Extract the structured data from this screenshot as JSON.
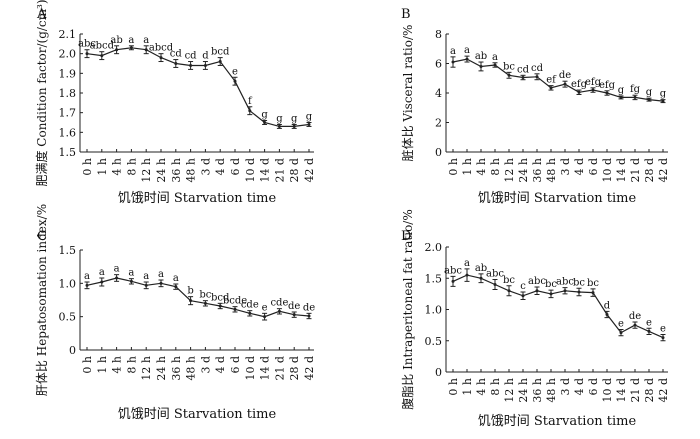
{
  "chart_data": [
    {
      "type": "line",
      "panel_label": "A",
      "ylabel": "肥满度 Condition factor/(g/cm³)",
      "xlabel": "饥饿时间 Starvation time",
      "categories": [
        "0 h",
        "1 h",
        "4 h",
        "8 h",
        "12 h",
        "24 h",
        "36 h",
        "48 h",
        "3 d",
        "4 d",
        "6 d",
        "10 d",
        "14 d",
        "21 d",
        "28 d",
        "42 d"
      ],
      "yticks": [
        "1.5",
        "1.6",
        "1.7",
        "1.8",
        "1.9",
        "2.0",
        "2.1"
      ],
      "ylim": [
        1.5,
        2.1
      ],
      "values": [
        2.0,
        1.99,
        2.02,
        2.03,
        2.02,
        1.98,
        1.95,
        1.94,
        1.94,
        1.96,
        1.86,
        1.71,
        1.65,
        1.63,
        1.63,
        1.64
      ],
      "errors": [
        0.02,
        0.02,
        0.02,
        0.01,
        0.02,
        0.02,
        0.02,
        0.02,
        0.02,
        0.02,
        0.02,
        0.02,
        0.01,
        0.01,
        0.01,
        0.01
      ],
      "letters": [
        "abc",
        "abcd",
        "ab",
        "a",
        "a",
        "abcd",
        "cd",
        "cd",
        "d",
        "bcd",
        "e",
        "f",
        "g",
        "g",
        "g",
        "g"
      ],
      "grid": false
    },
    {
      "type": "line",
      "panel_label": "B",
      "ylabel": "脏体比 Visceral ratio/%",
      "xlabel": "饥饿时间 Starvation time",
      "categories": [
        "0 h",
        "1 h",
        "4 h",
        "8 h",
        "12 h",
        "24 h",
        "36 h",
        "48 h",
        "3 d",
        "4 d",
        "6 d",
        "10 d",
        "14 d",
        "21 d",
        "28 d",
        "42 d"
      ],
      "yticks": [
        "0",
        "2",
        "4",
        "6",
        "8"
      ],
      "ylim": [
        0,
        8
      ],
      "values": [
        6.1,
        6.3,
        5.8,
        5.9,
        5.2,
        5.05,
        5.1,
        4.35,
        4.6,
        4.05,
        4.2,
        4.0,
        3.7,
        3.7,
        3.55,
        3.45
      ],
      "errors": [
        0.35,
        0.2,
        0.3,
        0.15,
        0.2,
        0.15,
        0.2,
        0.15,
        0.2,
        0.15,
        0.15,
        0.15,
        0.1,
        0.15,
        0.1,
        0.1
      ],
      "letters": [
        "a",
        "a",
        "ab",
        "a",
        "bc",
        "cd",
        "cd",
        "ef",
        "de",
        "efg",
        "efg",
        "efg",
        "g",
        "fg",
        "g",
        "g"
      ],
      "grid": false
    },
    {
      "type": "line",
      "panel_label": "C",
      "ylabel": "肝体比 Hepatosomation index/%",
      "xlabel": "饥饿时间 Starvation time",
      "categories": [
        "0 h",
        "1 h",
        "4 h",
        "8 h",
        "12 h",
        "24 h",
        "36 h",
        "48 h",
        "3 d",
        "4 d",
        "6 d",
        "10 d",
        "14 d",
        "21 d",
        "28 d",
        "42 d"
      ],
      "yticks": [
        "0",
        "0.5",
        "1.0",
        "1.5"
      ],
      "ylim": [
        0,
        1.5
      ],
      "values": [
        0.97,
        1.02,
        1.08,
        1.03,
        0.97,
        1.0,
        0.95,
        0.74,
        0.7,
        0.66,
        0.61,
        0.55,
        0.5,
        0.58,
        0.53,
        0.51
      ],
      "errors": [
        0.05,
        0.06,
        0.05,
        0.04,
        0.05,
        0.05,
        0.04,
        0.06,
        0.04,
        0.04,
        0.04,
        0.04,
        0.05,
        0.04,
        0.04,
        0.04
      ],
      "letters": [
        "a",
        "a",
        "a",
        "a",
        "a",
        "a",
        "a",
        "b",
        "bc",
        "bcd",
        "bcde",
        "cde",
        "e",
        "cde",
        "de",
        "de"
      ],
      "grid": false
    },
    {
      "type": "line",
      "panel_label": "D",
      "ylabel": "腹脂比 Intraperitoneal fat ratio/%",
      "xlabel": "饥饿时间 Starvation time",
      "categories": [
        "0 h",
        "1 h",
        "4 h",
        "8 h",
        "12 h",
        "24 h",
        "36 h",
        "48 h",
        "3 d",
        "4 d",
        "6 d",
        "10 d",
        "14 d",
        "21 d",
        "28 d",
        "42 d"
      ],
      "yticks": [
        "0",
        "0.5",
        "1.0",
        "1.5",
        "2.0"
      ],
      "ylim": [
        0,
        2.0
      ],
      "values": [
        1.45,
        1.55,
        1.5,
        1.4,
        1.3,
        1.22,
        1.3,
        1.25,
        1.3,
        1.28,
        1.27,
        0.92,
        0.63,
        0.75,
        0.65,
        0.55
      ],
      "errors": [
        0.08,
        0.1,
        0.07,
        0.08,
        0.08,
        0.06,
        0.06,
        0.06,
        0.05,
        0.06,
        0.06,
        0.05,
        0.05,
        0.05,
        0.05,
        0.05
      ],
      "letters": [
        "abc",
        "a",
        "ab",
        "abc",
        "bc",
        "c",
        "abc",
        "bc",
        "abc",
        "bc",
        "bc",
        "d",
        "e",
        "de",
        "e",
        "e"
      ],
      "grid": false
    }
  ]
}
